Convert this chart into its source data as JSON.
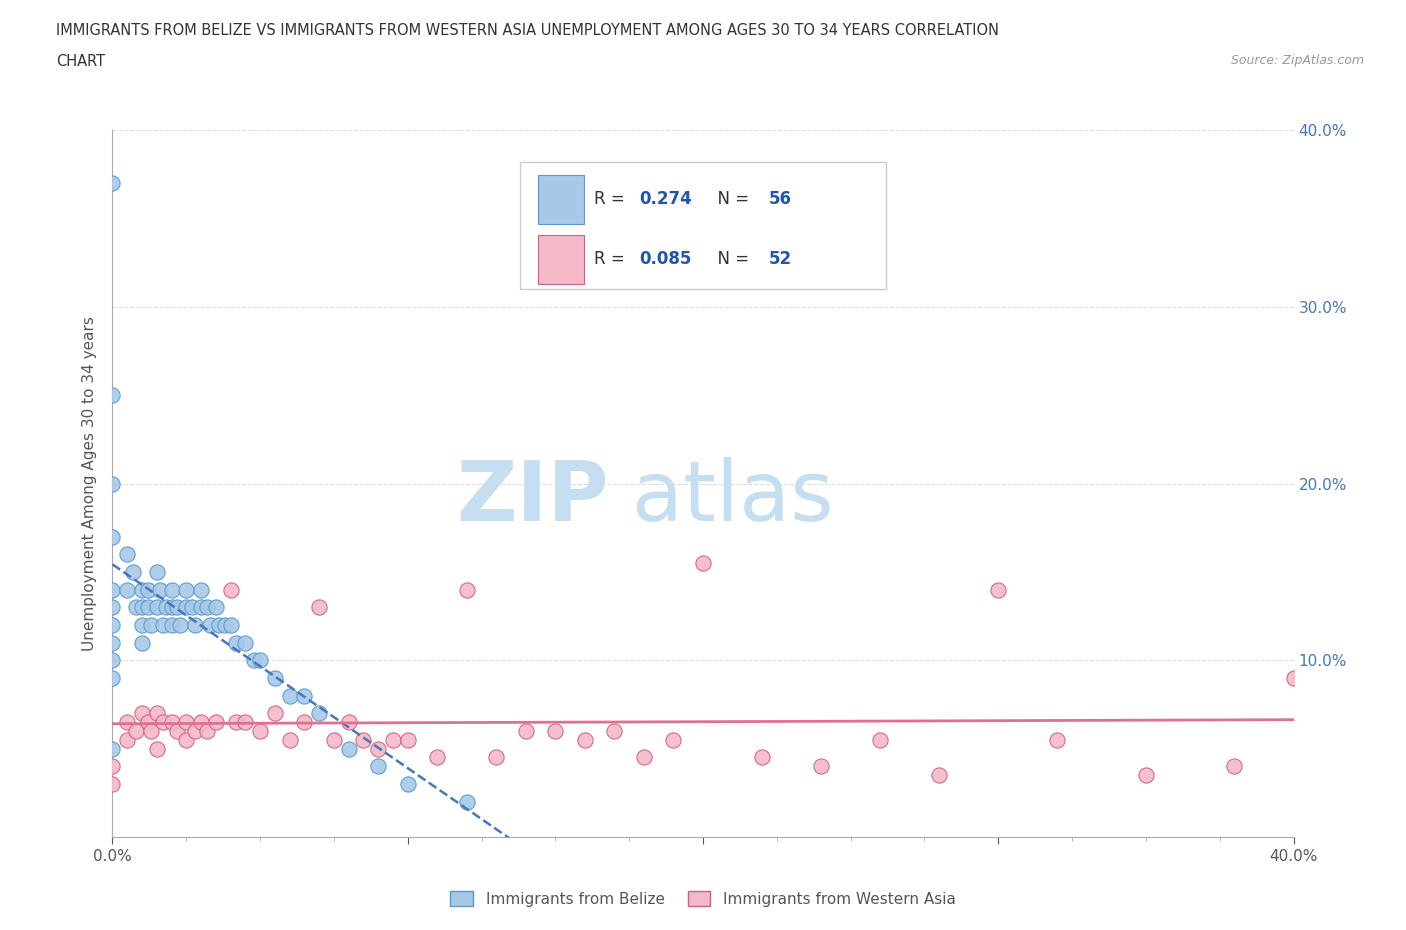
{
  "title_line1": "IMMIGRANTS FROM BELIZE VS IMMIGRANTS FROM WESTERN ASIA UNEMPLOYMENT AMONG AGES 30 TO 34 YEARS CORRELATION",
  "title_line2": "CHART",
  "source_text": "Source: ZipAtlas.com",
  "ylabel": "Unemployment Among Ages 30 to 34 years",
  "x_min": 0.0,
  "x_max": 0.4,
  "y_min": 0.0,
  "y_max": 0.4,
  "belize_color": "#a8c8e8",
  "belize_edge_color": "#5599cc",
  "western_asia_color": "#f4b8c8",
  "western_asia_edge_color": "#d06080",
  "regression_line_belize_color": "#4477bb",
  "regression_line_wa_color": "#e07090",
  "watermark_zip_color": "#c8dff0",
  "watermark_atlas_color": "#c8dff0",
  "grid_color": "#dddddd",
  "background_color": "#ffffff",
  "right_axis_color": "#4477bb",
  "belize_R": "0.274",
  "belize_N": "56",
  "western_asia_R": "0.085",
  "western_asia_N": "52",
  "legend_color_R": "#2255aa",
  "legend_color_N": "#2255aa",
  "belize_scatter_x": [
    0.0,
    0.0,
    0.0,
    0.0,
    0.0,
    0.0,
    0.0,
    0.0,
    0.0,
    0.0,
    0.0,
    0.005,
    0.005,
    0.007,
    0.008,
    0.01,
    0.01,
    0.01,
    0.01,
    0.012,
    0.012,
    0.013,
    0.015,
    0.015,
    0.016,
    0.017,
    0.018,
    0.02,
    0.02,
    0.02,
    0.022,
    0.023,
    0.025,
    0.025,
    0.027,
    0.028,
    0.03,
    0.03,
    0.032,
    0.033,
    0.035,
    0.036,
    0.038,
    0.04,
    0.042,
    0.045,
    0.048,
    0.05,
    0.055,
    0.06,
    0.065,
    0.07,
    0.08,
    0.09,
    0.1,
    0.12
  ],
  "belize_scatter_y": [
    0.37,
    0.25,
    0.2,
    0.17,
    0.14,
    0.13,
    0.12,
    0.11,
    0.1,
    0.09,
    0.05,
    0.16,
    0.14,
    0.15,
    0.13,
    0.14,
    0.13,
    0.12,
    0.11,
    0.14,
    0.13,
    0.12,
    0.15,
    0.13,
    0.14,
    0.12,
    0.13,
    0.14,
    0.13,
    0.12,
    0.13,
    0.12,
    0.14,
    0.13,
    0.13,
    0.12,
    0.14,
    0.13,
    0.13,
    0.12,
    0.13,
    0.12,
    0.12,
    0.12,
    0.11,
    0.11,
    0.1,
    0.1,
    0.09,
    0.08,
    0.08,
    0.07,
    0.05,
    0.04,
    0.03,
    0.02
  ],
  "western_asia_scatter_x": [
    0.0,
    0.0,
    0.005,
    0.005,
    0.008,
    0.01,
    0.012,
    0.013,
    0.015,
    0.015,
    0.017,
    0.02,
    0.022,
    0.025,
    0.025,
    0.028,
    0.03,
    0.032,
    0.035,
    0.04,
    0.042,
    0.045,
    0.05,
    0.055,
    0.06,
    0.065,
    0.07,
    0.075,
    0.08,
    0.085,
    0.09,
    0.095,
    0.1,
    0.11,
    0.12,
    0.13,
    0.14,
    0.15,
    0.16,
    0.17,
    0.18,
    0.19,
    0.2,
    0.22,
    0.24,
    0.26,
    0.28,
    0.3,
    0.32,
    0.35,
    0.38,
    0.4
  ],
  "western_asia_scatter_y": [
    0.04,
    0.03,
    0.065,
    0.055,
    0.06,
    0.07,
    0.065,
    0.06,
    0.07,
    0.05,
    0.065,
    0.065,
    0.06,
    0.065,
    0.055,
    0.06,
    0.065,
    0.06,
    0.065,
    0.14,
    0.065,
    0.065,
    0.06,
    0.07,
    0.055,
    0.065,
    0.13,
    0.055,
    0.065,
    0.055,
    0.05,
    0.055,
    0.055,
    0.045,
    0.14,
    0.045,
    0.06,
    0.06,
    0.055,
    0.06,
    0.045,
    0.055,
    0.155,
    0.045,
    0.04,
    0.055,
    0.035,
    0.14,
    0.055,
    0.035,
    0.04,
    0.09
  ]
}
